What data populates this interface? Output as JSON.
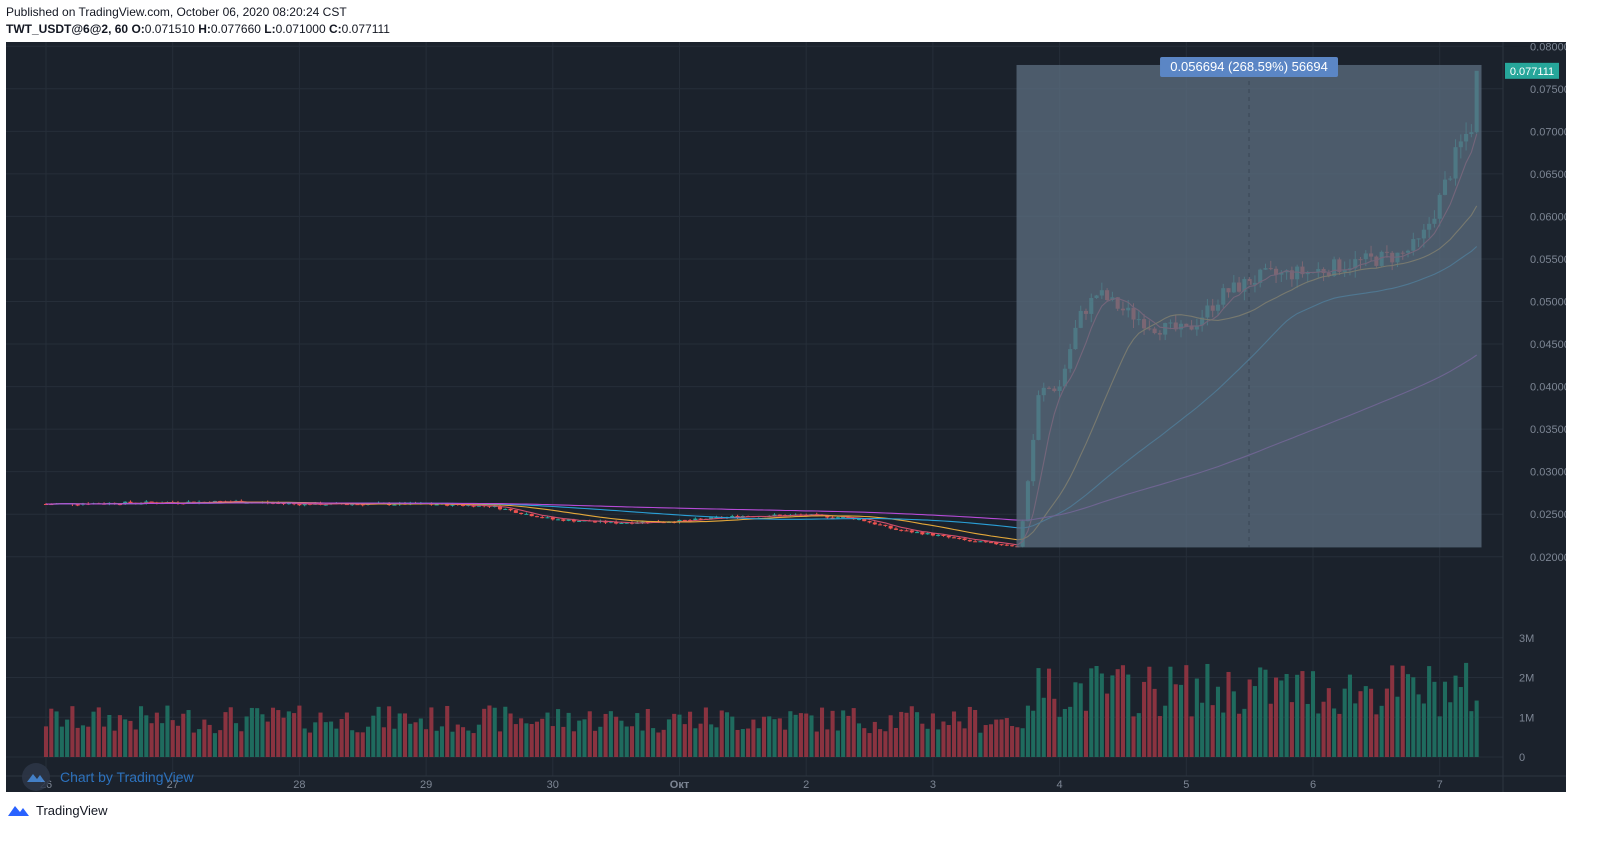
{
  "header": {
    "published": "Published on TradingView.com, October 06, 2020 08:20:24 CST",
    "symbol": "TWT_USDT@6@2, 60",
    "o_label": "O:",
    "o_value": "0.071510",
    "h_label": "H:",
    "h_value": "0.077660",
    "l_label": "L:",
    "l_value": "0.071000",
    "c_label": "C:",
    "c_value": "0.077111"
  },
  "footer": {
    "brand": "TradingView"
  },
  "watermark": {
    "text": "Chart by TradingView"
  },
  "colors": {
    "background": "#1b222c",
    "grid": "#262e39",
    "up": "#26a69a",
    "down": "#ef5350",
    "vol_up": "#1f6b5e",
    "vol_down": "#8a3340",
    "ma_fast": "#e4a83a",
    "ma_mid": "#2a9fd6",
    "ma_slow": "#b54bd6",
    "ma_vfast": "#d0506e",
    "range_box": "#5a6b7d",
    "range_label_bg": "#5b86c5",
    "last_price_bg": "#26a69a",
    "axis_text": "#7d8694"
  },
  "chart_data": {
    "type": "candlestick",
    "symbol": "TWT_USDT@6@2",
    "interval": "60",
    "last_price": "0.077111",
    "x_ticks": [
      "26",
      "27",
      "28",
      "29",
      "30",
      "Окт",
      "2",
      "3",
      "4",
      "5",
      "6",
      "7"
    ],
    "y_ticks": [
      "0.080000",
      "0.075000",
      "0.070000",
      "0.065000",
      "0.060000",
      "0.055000",
      "0.050000",
      "0.045000",
      "0.040000",
      "0.035000",
      "0.030000",
      "0.025000",
      "0.020000"
    ],
    "y_range": [
      0.0168,
      0.0805
    ],
    "volume_ticks": [
      "3M",
      "2M",
      "1M",
      "0"
    ],
    "volume_range": [
      0,
      3900000
    ],
    "range_measure": {
      "label": "0.056694 (268.59%) 56694",
      "from_price": 0.0211,
      "to_price": 0.0778,
      "from_day": 3.66,
      "to_day": 6.33
    },
    "price_path": [
      [
        0.0,
        0.0262
      ],
      [
        0.5,
        0.0263
      ],
      [
        1.0,
        0.0264
      ],
      [
        1.5,
        0.0265
      ],
      [
        2.0,
        0.0262
      ],
      [
        2.5,
        0.0262
      ],
      [
        3.0,
        0.0262
      ],
      [
        3.5,
        0.026
      ],
      [
        3.8,
        0.025
      ],
      [
        4.0,
        0.0244
      ],
      [
        4.5,
        0.024
      ],
      [
        5.0,
        0.0242
      ],
      [
        5.5,
        0.0248
      ],
      [
        6.0,
        0.0249
      ],
      [
        6.4,
        0.0245
      ],
      [
        6.7,
        0.0232
      ],
      [
        7.0,
        0.0226
      ],
      [
        7.3,
        0.0218
      ],
      [
        7.6,
        0.0214
      ],
      [
        7.68,
        0.0211
      ],
      [
        7.76,
        0.03
      ],
      [
        7.84,
        0.0395
      ],
      [
        8.0,
        0.04
      ],
      [
        8.15,
        0.048
      ],
      [
        8.3,
        0.051
      ],
      [
        8.5,
        0.049
      ],
      [
        8.75,
        0.047
      ],
      [
        9.0,
        0.0465
      ],
      [
        9.3,
        0.051
      ],
      [
        9.6,
        0.053
      ],
      [
        10.0,
        0.0535
      ],
      [
        10.3,
        0.0545
      ],
      [
        10.5,
        0.055
      ],
      [
        10.7,
        0.0555
      ],
      [
        10.85,
        0.057
      ],
      [
        11.0,
        0.062
      ],
      [
        11.15,
        0.068
      ],
      [
        11.3,
        0.072
      ],
      [
        11.33,
        0.0771
      ]
    ]
  }
}
